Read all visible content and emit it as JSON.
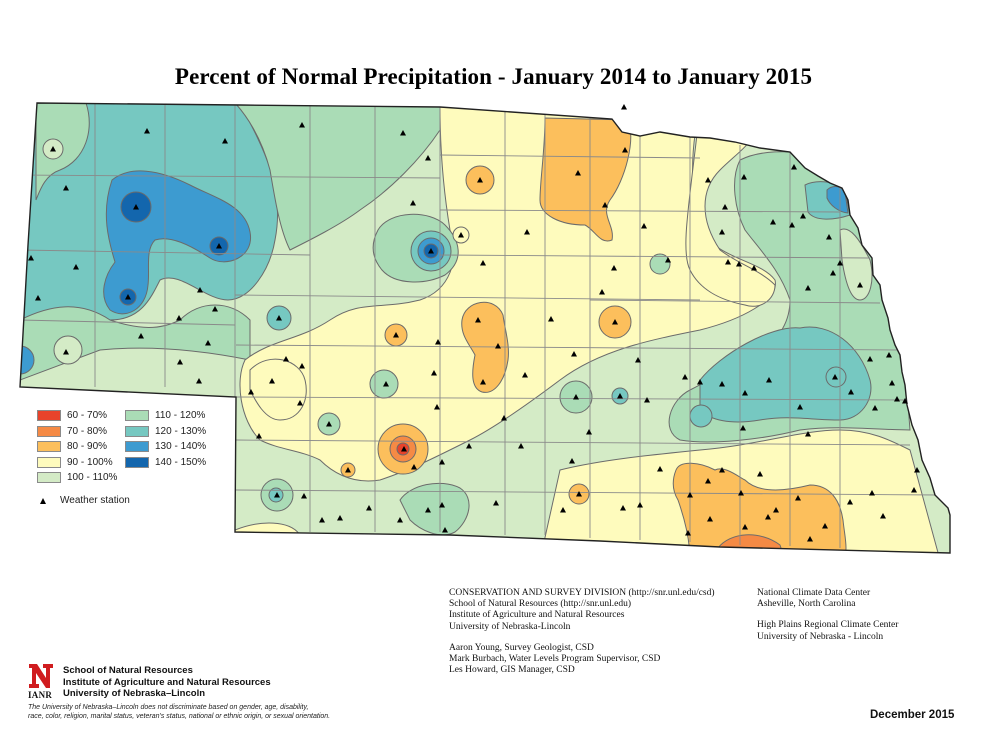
{
  "title": "Percent of Normal Precipitation - January 2014 to January 2015",
  "legend": {
    "classes": [
      {
        "label": "60 - 70%",
        "color": "#e8432b"
      },
      {
        "label": "70 - 80%",
        "color": "#f58a45"
      },
      {
        "label": "80 - 90%",
        "color": "#fcbf5c"
      },
      {
        "label": "90 - 100%",
        "color": "#fefbbd"
      },
      {
        "label": "100 - 110%",
        "color": "#d4ebc6"
      },
      {
        "label": "110 - 120%",
        "color": "#aadcb6"
      },
      {
        "label": "120 - 130%",
        "color": "#76c8c1"
      },
      {
        "label": "130 - 140%",
        "color": "#3d9bd0"
      },
      {
        "label": "140 - 150%",
        "color": "#1366ad"
      }
    ],
    "station_label": "Weather station"
  },
  "credits_left": {
    "lines_top": [
      "CONSERVATION AND SURVEY DIVISION (http://snr.unl.edu/csd)",
      "School of Natural Resources (http://snr.unl.edu)",
      "Institute of Agriculture and Natural Resources",
      "University of Nebraska-Lincoln"
    ],
    "lines_bottom": [
      "Aaron Young, Survey Geologist, CSD",
      "Mark Burbach, Water Levels Program Supervisor, CSD",
      "Les Howard, GIS Manager, CSD"
    ]
  },
  "credits_right": {
    "lines_top": [
      "National Climate Data Center",
      "Asheville, North Carolina"
    ],
    "lines_bottom": [
      "High Plains Regional Climate Center",
      "University of Nebraska - Lincoln"
    ]
  },
  "logo": {
    "letter": "N",
    "sub": "IANR"
  },
  "org": {
    "lines": [
      "School of Natural Resources",
      "Institute of Agriculture and Natural Resources",
      "University of Nebraska–Lincoln"
    ]
  },
  "disclaimer": [
    "The University of Nebraska–Lincoln does not discriminate based on gender, age, disability,",
    "race, color, religion, marital status, veteran's status, national or ethnic origin, or sexual orientation."
  ],
  "date": "December 2015",
  "map": {
    "state": "Nebraska",
    "period": "January 2014 to January 2015"
  }
}
